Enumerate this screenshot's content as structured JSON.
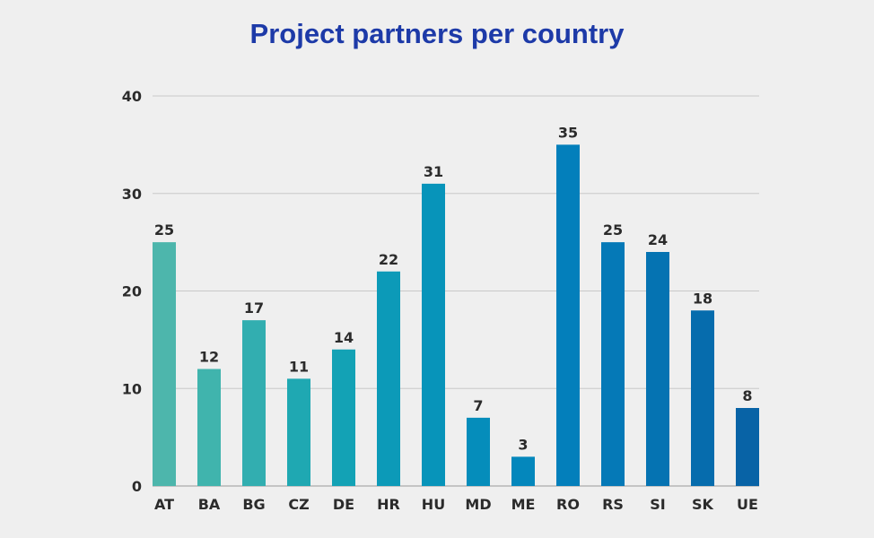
{
  "chart_data": {
    "type": "bar",
    "title": "Project partners per country",
    "xlabel": "",
    "ylabel": "",
    "categories": [
      "AT",
      "BA",
      "BG",
      "CZ",
      "DE",
      "HR",
      "HU",
      "MD",
      "ME",
      "RO",
      "RS",
      "SI",
      "SK",
      "UE"
    ],
    "values": [
      25,
      12,
      17,
      11,
      14,
      22,
      31,
      7,
      3,
      35,
      25,
      24,
      18,
      8
    ],
    "ylim": [
      0,
      40
    ],
    "yticks": [
      0,
      10,
      20,
      30,
      40
    ],
    "grid": true,
    "data_labels": true,
    "bar_colors": [
      "#4db6ac",
      "#40b4ad",
      "#32aeb0",
      "#1fa8b2",
      "#13a2b5",
      "#0c9ab8",
      "#0794ba",
      "#058dbb",
      "#0487bc",
      "#037fbb",
      "#0579b7",
      "#0573b2",
      "#066cad",
      "#0863a6"
    ]
  }
}
